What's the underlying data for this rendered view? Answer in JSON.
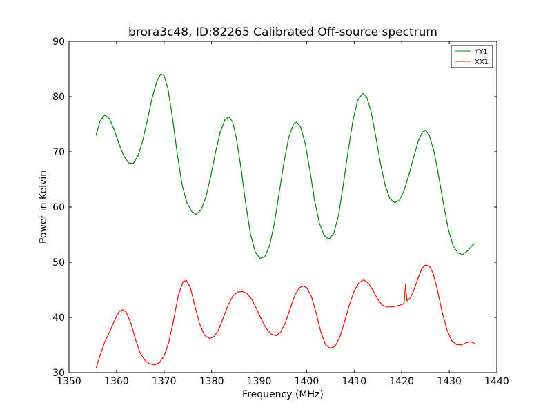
{
  "chart_data": {
    "type": "line",
    "title": "brora3c48, ID:82265 Calibrated Off-source spectrum",
    "xlabel": "Frequency (MHz)",
    "ylabel": "Power in Kelvin",
    "xlim": [
      1350,
      1440
    ],
    "ylim": [
      30,
      90
    ],
    "xticks": [
      1350,
      1360,
      1370,
      1380,
      1390,
      1400,
      1410,
      1420,
      1430,
      1440
    ],
    "yticks": [
      30,
      40,
      50,
      60,
      70,
      80,
      90
    ],
    "grid": false,
    "legend_position": "top-right",
    "series": [
      {
        "name": "YY1",
        "color": "#008000",
        "points": [
          [
            1355.7,
            73.0
          ],
          [
            1356.5,
            75.5
          ],
          [
            1357.5,
            76.7
          ],
          [
            1358.5,
            76.0
          ],
          [
            1359.5,
            74.0
          ],
          [
            1360.5,
            71.5
          ],
          [
            1361.5,
            69.3
          ],
          [
            1362.5,
            68.0
          ],
          [
            1363.5,
            67.9
          ],
          [
            1364.5,
            69.2
          ],
          [
            1365.5,
            72.0
          ],
          [
            1366.5,
            75.8
          ],
          [
            1367.5,
            79.8
          ],
          [
            1368.5,
            82.8
          ],
          [
            1369.3,
            84.1
          ],
          [
            1370.0,
            83.8
          ],
          [
            1370.8,
            81.5
          ],
          [
            1371.8,
            76.0
          ],
          [
            1372.8,
            69.5
          ],
          [
            1373.8,
            64.0
          ],
          [
            1374.8,
            60.8
          ],
          [
            1375.8,
            59.2
          ],
          [
            1376.8,
            58.7
          ],
          [
            1377.8,
            59.5
          ],
          [
            1378.8,
            61.8
          ],
          [
            1379.8,
            65.5
          ],
          [
            1380.8,
            69.8
          ],
          [
            1381.8,
            73.5
          ],
          [
            1382.8,
            75.8
          ],
          [
            1383.6,
            76.3
          ],
          [
            1384.4,
            75.5
          ],
          [
            1385.2,
            72.5
          ],
          [
            1386.2,
            67.0
          ],
          [
            1387.2,
            60.5
          ],
          [
            1388.2,
            55.0
          ],
          [
            1389.2,
            51.8
          ],
          [
            1390.2,
            50.7
          ],
          [
            1391.2,
            51.0
          ],
          [
            1392.2,
            53.0
          ],
          [
            1393.2,
            57.0
          ],
          [
            1394.2,
            62.5
          ],
          [
            1395.2,
            68.0
          ],
          [
            1396.2,
            72.5
          ],
          [
            1397.2,
            75.0
          ],
          [
            1397.9,
            75.4
          ],
          [
            1398.7,
            74.5
          ],
          [
            1399.7,
            71.5
          ],
          [
            1400.7,
            66.5
          ],
          [
            1401.7,
            61.0
          ],
          [
            1402.7,
            57.0
          ],
          [
            1403.7,
            54.8
          ],
          [
            1404.7,
            54.2
          ],
          [
            1405.7,
            55.2
          ],
          [
            1406.7,
            58.5
          ],
          [
            1407.7,
            64.0
          ],
          [
            1408.7,
            70.0
          ],
          [
            1409.7,
            75.5
          ],
          [
            1410.7,
            79.3
          ],
          [
            1411.8,
            80.6
          ],
          [
            1412.6,
            80.0
          ],
          [
            1413.5,
            77.5
          ],
          [
            1414.5,
            73.0
          ],
          [
            1415.5,
            68.0
          ],
          [
            1416.5,
            64.0
          ],
          [
            1417.5,
            61.5
          ],
          [
            1418.5,
            60.8
          ],
          [
            1419.5,
            61.2
          ],
          [
            1420.5,
            63.0
          ],
          [
            1421.5,
            65.8
          ],
          [
            1422.5,
            69.0
          ],
          [
            1423.5,
            72.0
          ],
          [
            1424.3,
            73.5
          ],
          [
            1425.0,
            73.9
          ],
          [
            1425.8,
            73.0
          ],
          [
            1426.8,
            70.0
          ],
          [
            1427.8,
            65.5
          ],
          [
            1428.8,
            60.5
          ],
          [
            1429.8,
            56.0
          ],
          [
            1430.8,
            53.0
          ],
          [
            1431.8,
            51.7
          ],
          [
            1432.8,
            51.4
          ],
          [
            1433.8,
            52.0
          ],
          [
            1434.8,
            53.0
          ],
          [
            1435.3,
            53.4
          ]
        ]
      },
      {
        "name": "XX1",
        "color": "#ff0000",
        "points": [
          [
            1355.7,
            30.8
          ],
          [
            1356.5,
            33.0
          ],
          [
            1357.5,
            35.5
          ],
          [
            1358.5,
            37.3
          ],
          [
            1359.5,
            39.3
          ],
          [
            1360.5,
            41.0
          ],
          [
            1361.3,
            41.4
          ],
          [
            1362.0,
            41.0
          ],
          [
            1363.0,
            39.0
          ],
          [
            1364.0,
            36.0
          ],
          [
            1365.0,
            33.5
          ],
          [
            1366.0,
            32.2
          ],
          [
            1367.0,
            31.6
          ],
          [
            1368.0,
            31.4
          ],
          [
            1369.0,
            31.8
          ],
          [
            1370.0,
            33.0
          ],
          [
            1371.0,
            35.5
          ],
          [
            1372.0,
            39.5
          ],
          [
            1373.0,
            44.0
          ],
          [
            1374.0,
            46.5
          ],
          [
            1374.7,
            46.7
          ],
          [
            1375.5,
            45.5
          ],
          [
            1376.5,
            42.0
          ],
          [
            1377.5,
            38.8
          ],
          [
            1378.5,
            36.8
          ],
          [
            1379.5,
            36.2
          ],
          [
            1380.5,
            36.5
          ],
          [
            1381.5,
            37.8
          ],
          [
            1382.5,
            40.0
          ],
          [
            1383.5,
            42.3
          ],
          [
            1384.5,
            43.9
          ],
          [
            1385.5,
            44.6
          ],
          [
            1386.5,
            44.7
          ],
          [
            1387.5,
            44.3
          ],
          [
            1388.5,
            43.2
          ],
          [
            1389.5,
            41.5
          ],
          [
            1390.5,
            39.6
          ],
          [
            1391.5,
            38.0
          ],
          [
            1392.5,
            37.0
          ],
          [
            1393.5,
            36.7
          ],
          [
            1394.5,
            37.3
          ],
          [
            1395.5,
            39.0
          ],
          [
            1396.5,
            41.5
          ],
          [
            1397.5,
            44.0
          ],
          [
            1398.5,
            45.4
          ],
          [
            1399.3,
            45.7
          ],
          [
            1400.0,
            45.4
          ],
          [
            1401.0,
            43.8
          ],
          [
            1402.0,
            40.8
          ],
          [
            1403.0,
            37.3
          ],
          [
            1404.0,
            35.0
          ],
          [
            1405.0,
            34.4
          ],
          [
            1406.0,
            34.8
          ],
          [
            1407.0,
            36.5
          ],
          [
            1408.0,
            39.3
          ],
          [
            1409.0,
            42.3
          ],
          [
            1410.0,
            44.8
          ],
          [
            1411.0,
            46.3
          ],
          [
            1412.0,
            46.8
          ],
          [
            1413.0,
            46.2
          ],
          [
            1414.0,
            44.8
          ],
          [
            1415.0,
            43.2
          ],
          [
            1416.0,
            42.2
          ],
          [
            1417.0,
            41.9
          ],
          [
            1418.0,
            41.9
          ],
          [
            1419.0,
            42.1
          ],
          [
            1420.0,
            42.3
          ],
          [
            1420.5,
            42.6
          ],
          [
            1420.8,
            46.0
          ],
          [
            1421.1,
            43.0
          ],
          [
            1421.8,
            43.5
          ],
          [
            1422.5,
            44.8
          ],
          [
            1423.3,
            46.8
          ],
          [
            1424.2,
            48.8
          ],
          [
            1425.0,
            49.5
          ],
          [
            1425.8,
            49.3
          ],
          [
            1426.6,
            48.0
          ],
          [
            1427.5,
            45.0
          ],
          [
            1428.5,
            41.0
          ],
          [
            1429.5,
            37.8
          ],
          [
            1430.5,
            35.8
          ],
          [
            1431.5,
            35.1
          ],
          [
            1432.5,
            35.0
          ],
          [
            1433.5,
            35.4
          ],
          [
            1434.5,
            35.6
          ],
          [
            1435.3,
            35.3
          ]
        ]
      }
    ]
  }
}
